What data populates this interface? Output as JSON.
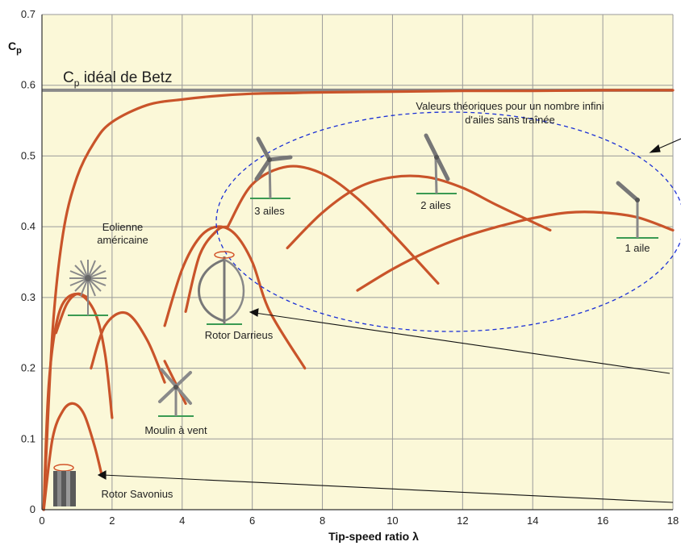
{
  "chart_data": {
    "type": "line",
    "title": "",
    "xlabel": "Tip-speed ratio λ",
    "ylabel": "Cp",
    "xlim": [
      0,
      18
    ],
    "ylim": [
      0,
      0.7
    ],
    "x_ticks": [
      "0",
      "2",
      "4",
      "6",
      "8",
      "10",
      "12",
      "14",
      "16",
      "18"
    ],
    "y_ticks": [
      "0",
      "0.1",
      "0.2",
      "0.3",
      "0.4",
      "0.5",
      "0.6",
      "0.7"
    ],
    "grid": true,
    "background": "#fbf8d8",
    "series_color": "#c9542a",
    "betz_line": {
      "label_main": "C",
      "label_sub": "p",
      "label_rest": " idéal de Betz",
      "value": 0.593,
      "color": "#8a8a8a"
    },
    "series": [
      {
        "x": [
          0.05,
          0.3,
          0.6,
          1,
          1.5,
          2,
          3,
          4,
          5,
          6,
          7,
          8,
          10,
          12,
          14,
          16,
          18
        ],
        "y": [
          0.0,
          0.25,
          0.39,
          0.47,
          0.52,
          0.548,
          0.572,
          0.58,
          0.585,
          0.588,
          0.589,
          0.59,
          0.591,
          0.592,
          0.592,
          0.593,
          0.593
        ]
      },
      {
        "x": [
          0.05,
          0.3,
          0.6,
          0.9,
          1.2,
          1.5,
          1.7
        ],
        "y": [
          0.0,
          0.1,
          0.14,
          0.15,
          0.135,
          0.09,
          0.05
        ]
      },
      {
        "x": [
          0.05,
          0.2,
          0.5,
          1.0,
          1.5,
          1.8,
          2.0
        ],
        "y": [
          0.0,
          0.18,
          0.28,
          0.305,
          0.28,
          0.22,
          0.13
        ]
      },
      {
        "x": [
          0.4,
          0.7,
          1.0,
          1.3
        ],
        "y": [
          0.25,
          0.29,
          0.305,
          0.3
        ]
      },
      {
        "x": [
          1.4,
          1.8,
          2.4,
          3.0,
          3.5
        ],
        "y": [
          0.2,
          0.26,
          0.278,
          0.24,
          0.18
        ]
      },
      {
        "x": [
          3.5,
          3.8,
          4.1
        ],
        "y": [
          0.21,
          0.18,
          0.15
        ]
      },
      {
        "x": [
          3.5,
          4,
          4.5,
          5,
          5.5,
          6,
          6.5,
          7.5
        ],
        "y": [
          0.26,
          0.34,
          0.385,
          0.4,
          0.39,
          0.35,
          0.28,
          0.2
        ]
      },
      {
        "x": [
          4.1,
          4.5,
          5,
          5.3
        ],
        "y": [
          0.28,
          0.36,
          0.395,
          0.4
        ]
      },
      {
        "x": [
          5.3,
          6,
          7,
          8,
          9,
          10,
          11.3
        ],
        "y": [
          0.4,
          0.46,
          0.485,
          0.475,
          0.44,
          0.39,
          0.32
        ]
      },
      {
        "x": [
          7,
          8,
          9,
          10,
          11,
          12,
          13,
          14.5
        ],
        "y": [
          0.37,
          0.42,
          0.455,
          0.47,
          0.47,
          0.455,
          0.43,
          0.395
        ]
      },
      {
        "x": [
          9,
          10,
          11,
          12,
          13,
          14,
          15,
          16,
          17,
          18
        ],
        "y": [
          0.31,
          0.34,
          0.365,
          0.385,
          0.4,
          0.412,
          0.42,
          0.42,
          0.413,
          0.395
        ]
      }
    ]
  },
  "annotations": {
    "theory_line1": "Valeurs théoriques pour un nombre infini",
    "theory_line2": "d'ailes sans traînée",
    "three_blades": "3 ailes",
    "two_blades": "2 ailes",
    "one_blade": "1 aile",
    "american_line1": "Eolienne",
    "american_line2": "américaine",
    "darrieus": "Rotor Darrieus",
    "windmill": "Moulin à vent",
    "savonius": "Rotor Savonius"
  },
  "icons": [
    "three-blade-turbine-icon",
    "two-blade-turbine-icon",
    "one-blade-turbine-icon",
    "american-windmill-icon",
    "darrieus-rotor-icon",
    "dutch-windmill-icon",
    "savonius-rotor-icon"
  ]
}
